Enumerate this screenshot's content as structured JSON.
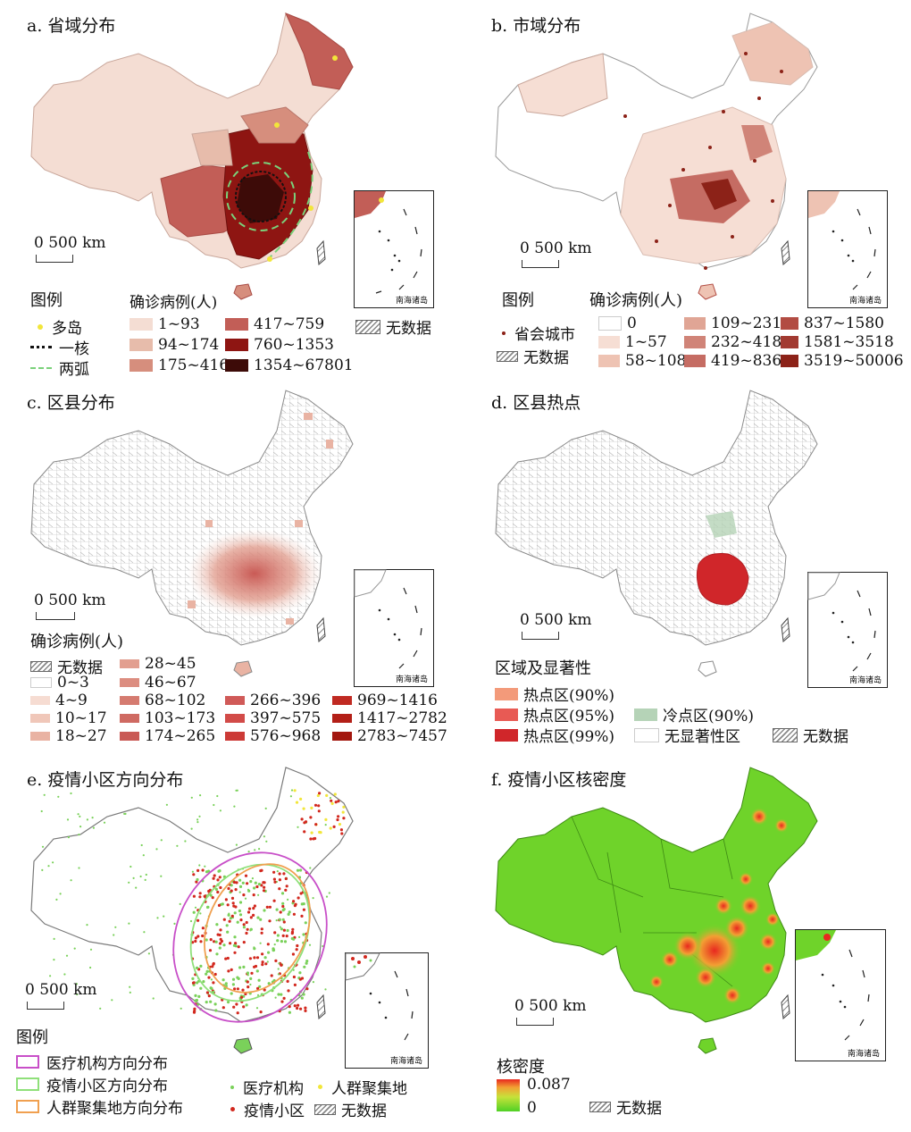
{
  "panels": {
    "a": {
      "title": "a. 省域分布",
      "scale_label": "0 500 km",
      "inset_label": "南海诸岛",
      "legend": {
        "title": "图例",
        "symbols": [
          {
            "label": "多岛",
            "color": "#f2e63a"
          },
          {
            "label": "一核",
            "color": "#111111"
          },
          {
            "label": "两弧",
            "color": "#7ad17a"
          }
        ],
        "class_title": "确诊病例(人)",
        "classes": [
          {
            "label": "1~93",
            "color": "#f4ddd3"
          },
          {
            "label": "94~174",
            "color": "#e7bcab"
          },
          {
            "label": "175~416",
            "color": "#d68e7d"
          },
          {
            "label": "417~759",
            "color": "#c25e57"
          },
          {
            "label": "760~1353",
            "color": "#8e1512"
          },
          {
            "label": "1354~67801",
            "color": "#3d0b08"
          }
        ],
        "nodata": "无数据"
      }
    },
    "b": {
      "title": "b. 市域分布",
      "scale_label": "0 500 km",
      "inset_label": "南海诸岛",
      "legend": {
        "title": "图例",
        "class_title": "确诊病例(人)",
        "capital": "省会城市",
        "nodata": "无数据",
        "classes": [
          {
            "label": "0",
            "color": "#ffffff"
          },
          {
            "label": "1~57",
            "color": "#f6ded4"
          },
          {
            "label": "58~108",
            "color": "#eec3b3"
          },
          {
            "label": "109~231",
            "color": "#e0a595"
          },
          {
            "label": "232~418",
            "color": "#d08478"
          },
          {
            "label": "419~836",
            "color": "#c56c63"
          },
          {
            "label": "837~1580",
            "color": "#b24c43"
          },
          {
            "label": "1581~3518",
            "color": "#a23a31"
          },
          {
            "label": "3519~50006",
            "color": "#8c2218"
          }
        ]
      }
    },
    "c": {
      "title": "c. 区县分布",
      "scale_label": "0 500 km",
      "inset_label": "南海诸岛",
      "legend": {
        "class_title": "确诊病例(人)",
        "nodata": "无数据",
        "classes": [
          {
            "label": "0~3",
            "color": "#ffffff"
          },
          {
            "label": "4~9",
            "color": "#f6dcd2"
          },
          {
            "label": "10~17",
            "color": "#f0c7b9"
          },
          {
            "label": "18~27",
            "color": "#e9b3a3"
          },
          {
            "label": "28~45",
            "color": "#e29f90"
          },
          {
            "label": "46~67",
            "color": "#dc8d80"
          },
          {
            "label": "68~102",
            "color": "#d57b70"
          },
          {
            "label": "103~173",
            "color": "#cf6a62"
          },
          {
            "label": "174~265",
            "color": "#c95a55"
          },
          {
            "label": "266~396",
            "color": "#d05a58"
          },
          {
            "label": "397~575",
            "color": "#d24b48"
          },
          {
            "label": "576~968",
            "color": "#cc3a36"
          },
          {
            "label": "969~1416",
            "color": "#c02a22"
          },
          {
            "label": "1417~2782",
            "color": "#b31f17"
          },
          {
            "label": "2783~7457",
            "color": "#a3170f"
          }
        ]
      }
    },
    "d": {
      "title": "d. 区县热点",
      "scale_label": "0 500 km",
      "inset_label": "南海诸岛",
      "legend": {
        "title": "区域及显著性",
        "items": [
          {
            "label": "热点区(90%)",
            "color": "#f39a7a"
          },
          {
            "label": "热点区(95%)",
            "color": "#e85a54"
          },
          {
            "label": "热点区(99%)",
            "color": "#d0262a"
          },
          {
            "label": "冷点区(90%)",
            "color": "#b5d3b7"
          },
          {
            "label": "无显著性区",
            "color": "#ffffff"
          }
        ],
        "nodata": "无数据"
      }
    },
    "e": {
      "title": "e. 疫情小区方向分布",
      "scale_label": "0 500 km",
      "inset_label": "南海诸岛",
      "legend": {
        "title": "图例",
        "ellipses": [
          {
            "label": "医疗机构方向分布",
            "color": "#c84fc8"
          },
          {
            "label": "疫情小区方向分布",
            "color": "#8fe07a"
          },
          {
            "label": "人群聚集地方向分布",
            "color": "#f0a050"
          }
        ],
        "points": [
          {
            "label": "医疗机构",
            "color": "#7ad15a"
          },
          {
            "label": "疫情小区",
            "color": "#d2281e"
          },
          {
            "label": "人群聚集地",
            "color": "#f2e63a"
          }
        ],
        "nodata": "无数据"
      }
    },
    "f": {
      "title": "f. 疫情小区核密度",
      "scale_label": "0 500 km",
      "inset_label": "南海诸岛",
      "legend": {
        "title": "核密度",
        "max": "0.087",
        "min": "0",
        "nodata": "无数据"
      }
    }
  }
}
